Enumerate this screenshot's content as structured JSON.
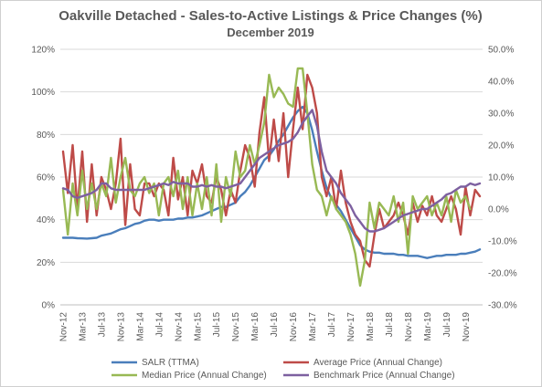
{
  "chart_data": {
    "type": "line",
    "title": "Oakville Detached - Sales-to-Active Listings & Price Changes (%)",
    "subtitle": "December 2019",
    "grid": true,
    "legend_position": "bottom",
    "x_labels": [
      "Nov-12",
      "Mar-13",
      "Jul-13",
      "Nov-13",
      "Mar-14",
      "Jul-14",
      "Nov-14",
      "Mar-15",
      "Jul-15",
      "Nov-15",
      "Mar-16",
      "Jul-16",
      "Nov-16",
      "Mar-17",
      "Jul-17",
      "Nov-17",
      "Mar-18",
      "Jul-18",
      "Nov-18",
      "Mar-19",
      "Jul-19",
      "Nov-19"
    ],
    "y_left": {
      "min": 0,
      "max": 120,
      "step": 20,
      "tick_labels": [
        "0%",
        "20%",
        "40%",
        "60%",
        "80%",
        "100%",
        "120%"
      ]
    },
    "y_right": {
      "min": -30,
      "max": 50,
      "step": 10,
      "tick_labels": [
        "-30.0%",
        "-20.0%",
        "-10.0%",
        "0.0%",
        "10.0%",
        "20.0%",
        "30.0%",
        "40.0%",
        "50.0%"
      ]
    },
    "series": [
      {
        "name": "SALR (TTMA)",
        "axis": "left",
        "color": "#4a7ebb",
        "values": [
          31.5,
          31.5,
          31.5,
          31.3,
          31.2,
          31.1,
          31.3,
          31.5,
          32.5,
          33,
          33.5,
          34.5,
          35.5,
          36,
          37,
          38,
          38.5,
          39.5,
          40,
          40,
          39.5,
          40,
          40,
          40,
          40.5,
          40.5,
          41,
          41,
          41.5,
          42,
          43,
          44,
          45,
          46,
          46,
          47,
          48,
          51,
          53,
          56,
          60,
          64,
          68,
          70,
          73,
          77,
          80,
          84,
          88,
          91,
          93,
          90,
          82,
          72,
          63,
          55,
          50,
          47,
          44,
          40,
          36,
          32,
          28,
          26,
          25,
          24.5,
          24.5,
          24,
          24,
          24,
          23.5,
          23.5,
          23,
          23,
          23,
          22.5,
          22,
          22.5,
          23,
          23,
          23.5,
          23.5,
          23.5,
          24,
          24,
          24.5,
          25,
          26
        ]
      },
      {
        "name": "Average Price (Annual Change)",
        "axis": "right",
        "color": "#be4b48",
        "values": [
          18,
          5,
          20,
          0,
          18,
          -4,
          14,
          -2,
          10,
          6,
          0,
          8,
          22,
          -5,
          14,
          0,
          -2,
          8,
          8,
          4,
          8,
          6,
          -2,
          16,
          3,
          10,
          -2,
          12,
          8,
          14,
          4,
          2,
          10,
          6,
          -2,
          6,
          2,
          12,
          20,
          16,
          7,
          24,
          35,
          15,
          28,
          15,
          30,
          10,
          25,
          38,
          25,
          42,
          38,
          30,
          10,
          4,
          10,
          0,
          12,
          2,
          -4,
          -8,
          -10,
          -16,
          -18,
          -8,
          0,
          -6,
          -4,
          -2,
          2,
          -2,
          -8,
          2,
          -4,
          1,
          -2,
          4,
          -2,
          -4,
          0,
          4,
          0,
          -8,
          7,
          -2,
          6,
          4
        ]
      },
      {
        "name": "Median Price (Annual Change)",
        "axis": "right",
        "color": "#98b954",
        "values": [
          6,
          -8,
          8,
          -2,
          12,
          0,
          8,
          0,
          8,
          4,
          16,
          2,
          10,
          16,
          6,
          4,
          8,
          10,
          5,
          8,
          -2,
          8,
          10,
          4,
          12,
          0,
          10,
          -2,
          8,
          0,
          10,
          -2,
          14,
          -4,
          10,
          4,
          18,
          10,
          12,
          20,
          14,
          20,
          27,
          42,
          35,
          38,
          36,
          33,
          32,
          44,
          44,
          30,
          14,
          6,
          4,
          -2,
          4,
          0,
          -2,
          -4,
          -8,
          -14,
          -24,
          -16,
          2,
          -6,
          2,
          0,
          -2,
          4,
          -4,
          2,
          -14,
          4,
          0,
          2,
          4,
          -2,
          2,
          -2,
          4,
          -4,
          6,
          2,
          4,
          0
        ]
      },
      {
        "name": "Benchmark Price (Annual Change)",
        "axis": "right",
        "color": "#7d60a0",
        "values": [
          6.5,
          6,
          4,
          3.5,
          4,
          4.5,
          5,
          6,
          8,
          8,
          6.5,
          6,
          6,
          6,
          6,
          6,
          6,
          6,
          6.5,
          7,
          7.5,
          8,
          7.5,
          8.5,
          8,
          8,
          8,
          7,
          7,
          7.5,
          7,
          7.5,
          7,
          7,
          6.5,
          7,
          7.5,
          8,
          10,
          12,
          14,
          16,
          17,
          18,
          19,
          20,
          20.5,
          21,
          22,
          24,
          27,
          29,
          31,
          26,
          18,
          12,
          10,
          8,
          5,
          3,
          1,
          -2,
          -4,
          -6,
          -7,
          -7,
          -6.5,
          -6,
          -5,
          -4,
          -3,
          -2,
          -1.5,
          -1,
          -0.5,
          0,
          0,
          1,
          2,
          3,
          4.5,
          5,
          6,
          7,
          7,
          8,
          7.5,
          8
        ]
      }
    ]
  },
  "legend": [
    {
      "label": "SALR (TTMA)",
      "color": "#4a7ebb"
    },
    {
      "label": "Average Price (Annual Change)",
      "color": "#be4b48"
    },
    {
      "label": "Median Price (Annual Change)",
      "color": "#98b954"
    },
    {
      "label": "Benchmark Price (Annual Change)",
      "color": "#7d60a0"
    }
  ]
}
